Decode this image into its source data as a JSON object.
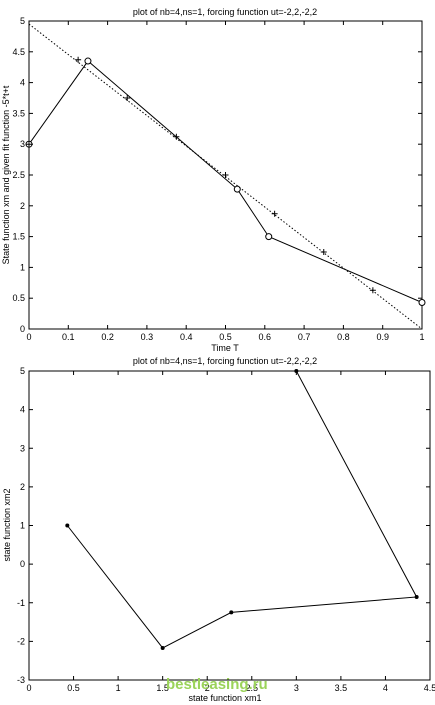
{
  "chart_data": [
    {
      "type": "line",
      "title": "plot of nb=4,ns=1, forcing function ut=-2,2,-2,2",
      "xlabel": "Time T",
      "ylabel": "State function xm and given fit function -5*t+t",
      "xlim": [
        0,
        1
      ],
      "ylim": [
        0,
        5
      ],
      "xticks": [
        "0",
        "0.1",
        "0.2",
        "0.3",
        "0.4",
        "0.5",
        "0.6",
        "0.7",
        "0.8",
        "0.9",
        "1"
      ],
      "yticks": [
        "0",
        "0.5",
        "1",
        "1.5",
        "2",
        "2.5",
        "3",
        "3.5",
        "4",
        "4.5",
        "5"
      ],
      "grid": false,
      "series": [
        {
          "style": "solid-with-circles",
          "x": [
            0,
            0.15,
            0.53,
            0.61,
            1.0
          ],
          "y": [
            3.0,
            4.35,
            2.27,
            1.5,
            0.43
          ]
        },
        {
          "style": "dotted",
          "x": [
            0,
            1.0
          ],
          "y": [
            4.95,
            0.0
          ]
        },
        {
          "style": "plus-markers",
          "x": [
            0,
            0.125,
            0.25,
            0.375,
            0.5,
            0.625,
            0.75,
            0.875
          ],
          "y": [
            3.0,
            4.37,
            3.75,
            3.12,
            2.5,
            1.87,
            1.25,
            0.63
          ]
        }
      ]
    },
    {
      "type": "line",
      "title": "plot of nb=4,ns=1, forcing function ut=-2,2,-2,2",
      "xlabel": "state function xm1",
      "ylabel": "state function xm2",
      "xlim": [
        0,
        4.5
      ],
      "ylim": [
        -3,
        5
      ],
      "xticks": [
        "0",
        "0.5",
        "1",
        "1.5",
        "2",
        "2.5",
        "3",
        "3.5",
        "4",
        "4.5"
      ],
      "yticks": [
        "-3",
        "-2",
        "-1",
        "0",
        "1",
        "2",
        "3",
        "4",
        "5"
      ],
      "grid": false,
      "series": [
        {
          "style": "solid-with-stars",
          "x": [
            0.43,
            1.5,
            2.27,
            4.35,
            3.0
          ],
          "y": [
            1.0,
            -2.17,
            -1.25,
            -0.85,
            5.0
          ]
        }
      ]
    }
  ],
  "watermark": "bestleasing.ru"
}
